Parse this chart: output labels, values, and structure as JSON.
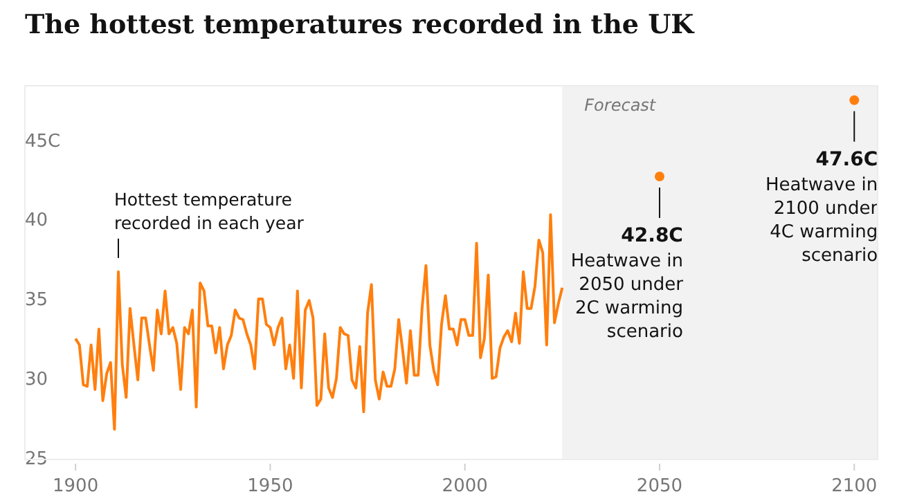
{
  "chart_data": {
    "type": "line",
    "title": "The hottest temperatures recorded in the UK",
    "xlim": [
      1887,
      2106
    ],
    "xticks": [
      1900,
      1950,
      2000,
      2050,
      2100
    ],
    "ylim": [
      25,
      48.5
    ],
    "yticks": [
      25,
      30,
      35,
      40,
      {
        "value": 45,
        "label": "45C"
      }
    ],
    "grid": false,
    "line_style": "solid",
    "marker": "none",
    "bands": [
      {
        "axis": "x",
        "from": 2025,
        "to": 2106,
        "label": "Forecast",
        "color": "#f2f2f2"
      }
    ],
    "series": [
      {
        "color": "#ff7f0e",
        "x": [
          1900,
          1901,
          1902,
          1903,
          1904,
          1905,
          1906,
          1907,
          1908,
          1909,
          1910,
          1911,
          1912,
          1913,
          1914,
          1915,
          1916,
          1917,
          1918,
          1919,
          1920,
          1921,
          1922,
          1923,
          1924,
          1925,
          1926,
          1927,
          1928,
          1929,
          1930,
          1931,
          1932,
          1933,
          1934,
          1935,
          1936,
          1937,
          1938,
          1939,
          1940,
          1941,
          1942,
          1943,
          1944,
          1945,
          1946,
          1947,
          1948,
          1949,
          1950,
          1951,
          1952,
          1953,
          1954,
          1955,
          1956,
          1957,
          1958,
          1959,
          1960,
          1961,
          1962,
          1963,
          1964,
          1965,
          1966,
          1967,
          1968,
          1969,
          1970,
          1971,
          1972,
          1973,
          1974,
          1975,
          1976,
          1977,
          1978,
          1979,
          1980,
          1981,
          1982,
          1983,
          1984,
          1985,
          1986,
          1987,
          1988,
          1989,
          1990,
          1991,
          1992,
          1993,
          1994,
          1995,
          1996,
          1997,
          1998,
          1999,
          2000,
          2001,
          2002,
          2003,
          2004,
          2005,
          2006,
          2007,
          2008,
          2009,
          2010,
          2011,
          2012,
          2013,
          2014,
          2015,
          2016,
          2017,
          2018,
          2019,
          2020,
          2021,
          2022,
          2023,
          2024,
          2025
        ],
        "values": [
          32.6,
          32.2,
          29.7,
          29.6,
          32.2,
          29.4,
          33.2,
          28.7,
          30.4,
          31.1,
          26.9,
          36.8,
          31.0,
          28.9,
          34.5,
          32.2,
          30.0,
          33.9,
          33.9,
          32.2,
          30.6,
          34.4,
          32.9,
          35.6,
          32.9,
          33.3,
          32.3,
          29.4,
          33.3,
          32.9,
          34.4,
          28.3,
          36.1,
          35.6,
          33.4,
          33.4,
          31.7,
          33.3,
          30.7,
          32.2,
          32.8,
          34.4,
          33.9,
          33.8,
          32.9,
          32.2,
          30.7,
          35.1,
          35.1,
          33.5,
          33.3,
          32.2,
          33.3,
          33.9,
          30.7,
          32.2,
          30.1,
          35.6,
          29.5,
          34.4,
          35.0,
          33.9,
          28.4,
          28.8,
          32.9,
          29.5,
          28.9,
          30.1,
          33.3,
          32.9,
          32.8,
          30.0,
          29.5,
          32.1,
          28.0,
          34.2,
          36.0,
          30.0,
          28.8,
          30.5,
          29.6,
          29.6,
          30.7,
          33.8,
          31.9,
          29.8,
          33.1,
          30.3,
          30.3,
          34.5,
          37.2,
          32.2,
          30.6,
          29.7,
          33.5,
          35.3,
          33.2,
          33.2,
          32.2,
          33.8,
          33.8,
          32.8,
          32.8,
          38.6,
          31.4,
          32.6,
          36.6,
          30.1,
          30.2,
          32.0,
          32.7,
          33.1,
          32.4,
          34.2,
          32.3,
          36.8,
          34.5,
          34.5,
          35.9,
          38.8,
          38.0,
          32.2,
          40.4,
          33.6,
          34.8,
          35.8
        ]
      },
      {
        "type": "scatter",
        "color": "#ff7f0e",
        "x": [
          2050,
          2100
        ],
        "values": [
          42.8,
          47.6
        ],
        "value_labels": [
          "42.8C",
          "47.6C"
        ],
        "marker": "circle"
      }
    ],
    "annotations": [
      {
        "text": "Hottest temperature\nrecorded in each year",
        "x": 1911,
        "y": 36.8
      },
      "Heatwave in\n2050 under\n2C warming\nscenario",
      "Heatwave in\n2100 under\n4C warming\nscenario"
    ]
  }
}
